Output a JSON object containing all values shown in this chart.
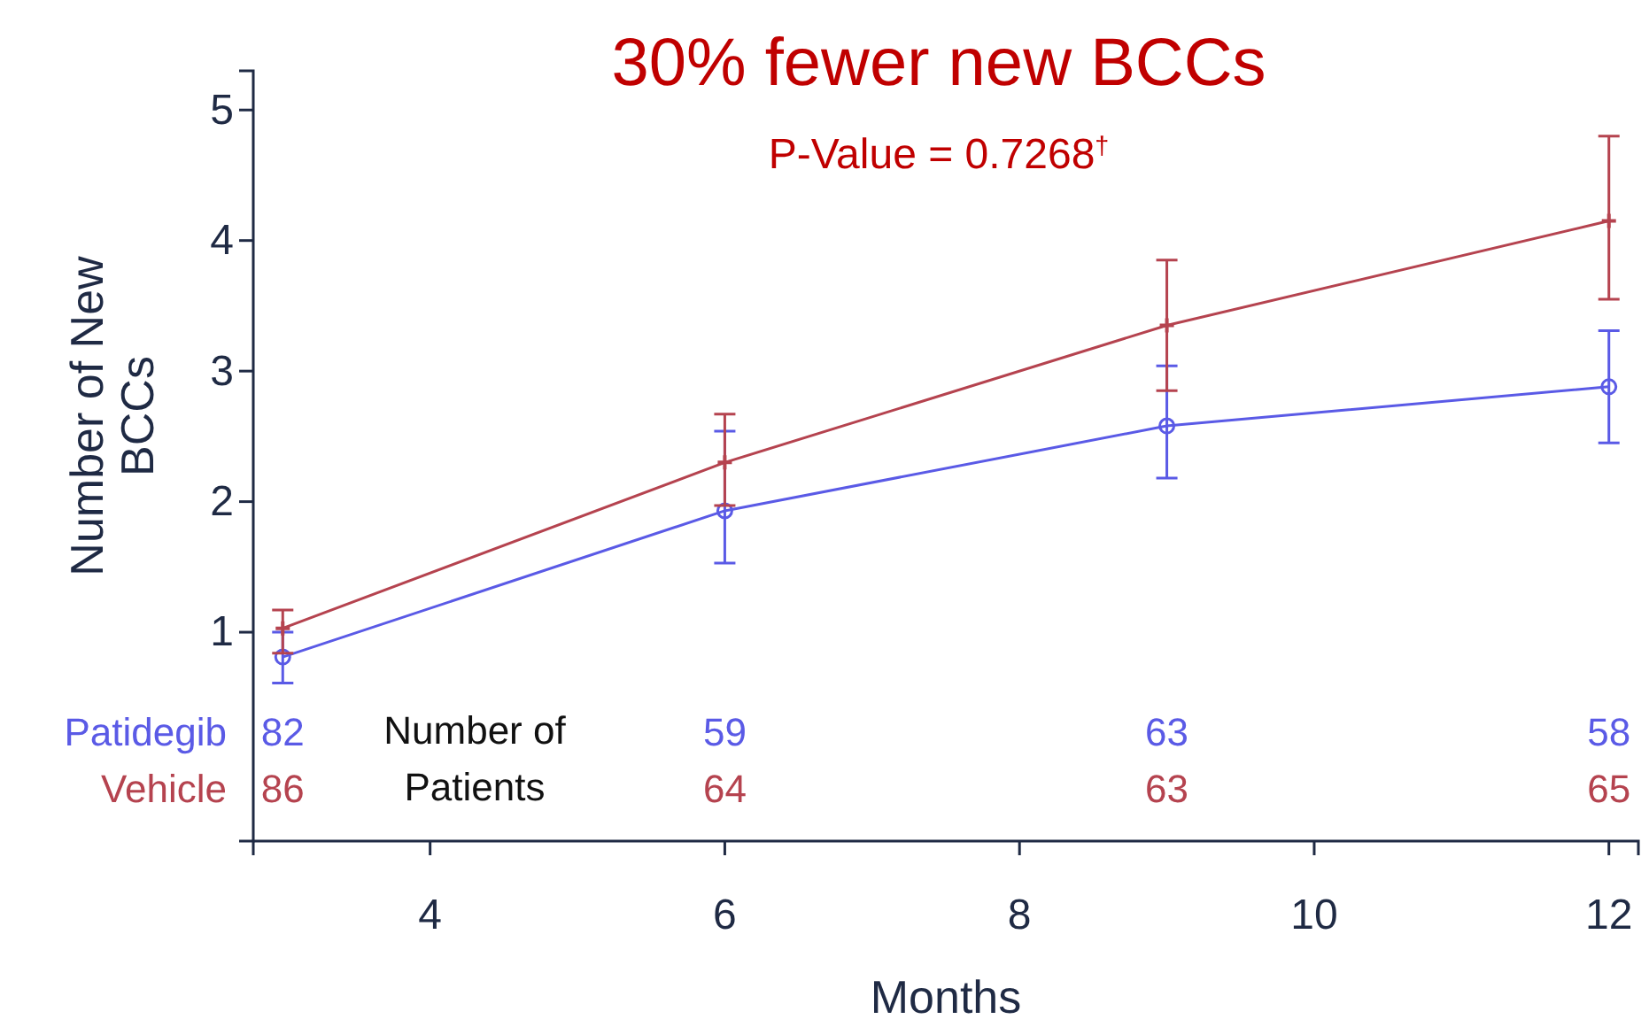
{
  "chart_data": {
    "type": "line",
    "title": "30% fewer new BCCs",
    "subtitle": "P-Value = 0.7268$^{†}$",
    "xlabel": "Months",
    "ylabel": "Number of New BCCs",
    "x": [
      3,
      6,
      9,
      12
    ],
    "series": [
      {
        "name": "Patidegib",
        "color": "#5a5ae6",
        "marker": "circle",
        "values": [
          0.81,
          1.93,
          2.58,
          2.88
        ],
        "errors": [
          [
            0.61,
            1.0
          ],
          [
            1.53,
            2.54
          ],
          [
            2.18,
            3.04
          ],
          [
            2.45,
            3.31
          ]
        ]
      },
      {
        "name": "Vehicle",
        "color": "#b5434f",
        "marker": "cross",
        "values": [
          1.03,
          2.3,
          3.35,
          4.15
        ],
        "errors": [
          [
            0.84,
            1.17
          ],
          [
            1.97,
            2.67
          ],
          [
            2.85,
            3.85
          ],
          [
            3.55,
            4.8
          ]
        ]
      }
    ],
    "xlim": [
      2.8,
      12.2
    ],
    "xticks": [
      4,
      6,
      8,
      10,
      12
    ],
    "ylim": [
      -0.6,
      5.3
    ],
    "yticks": [
      1,
      2,
      3,
      4,
      5
    ],
    "grid": false,
    "legend": false,
    "annotations": [
      "Number of Patients",
      "82",
      "59",
      "63",
      "58",
      "86",
      "64",
      "63",
      "65"
    ]
  }
}
